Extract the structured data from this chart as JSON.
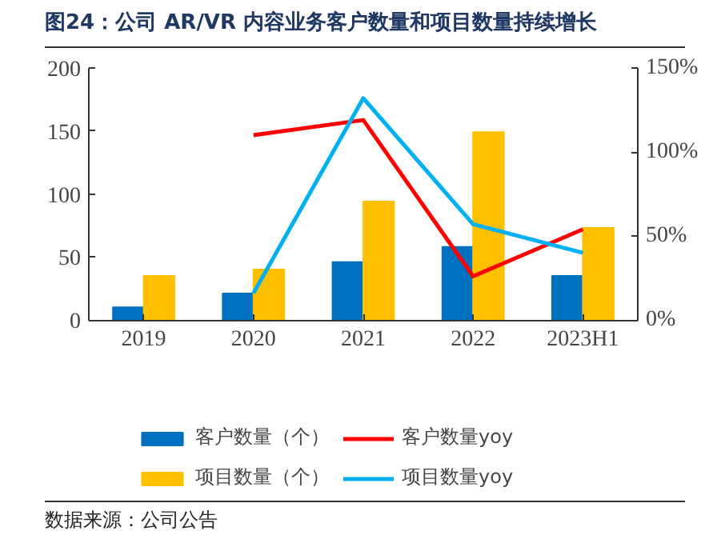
{
  "chart_data": {
    "type": "bar",
    "title": "图24：公司 AR/VR 内容业务客户数量和项目数量持续增长",
    "categories": [
      "2019",
      "2020",
      "2021",
      "2022",
      "2023H1"
    ],
    "series": [
      {
        "name": "客户数量（个）",
        "color": "#0070c0",
        "values": [
          10,
          21,
          46,
          58,
          35
        ]
      },
      {
        "name": "项目数量（个）",
        "color": "#ffc000",
        "values": [
          35,
          40,
          94,
          149,
          73
        ]
      },
      {
        "name": "客户数量yoy",
        "type": "line",
        "axis": "y2",
        "color": "#ff0000",
        "values": [
          null,
          110,
          119,
          26,
          54
        ]
      },
      {
        "name": "项目数量yoy",
        "type": "line",
        "axis": "y2",
        "color": "#00b0f0",
        "values": [
          null,
          16,
          132,
          57,
          40
        ]
      }
    ],
    "ylim": [
      0,
      200
    ],
    "yticks": [
      0,
      50,
      100,
      150,
      200
    ],
    "y2lim": [
      0,
      150
    ],
    "y2ticks": [
      {
        "value": 0,
        "label": "0%"
      },
      {
        "value": 50,
        "label": "50%"
      },
      {
        "value": 100,
        "label": "100%"
      },
      {
        "value": 150,
        "label": "150%"
      }
    ],
    "grid": false,
    "legend": "bottom",
    "annotations": [
      "数据来源：公司公告"
    ]
  }
}
